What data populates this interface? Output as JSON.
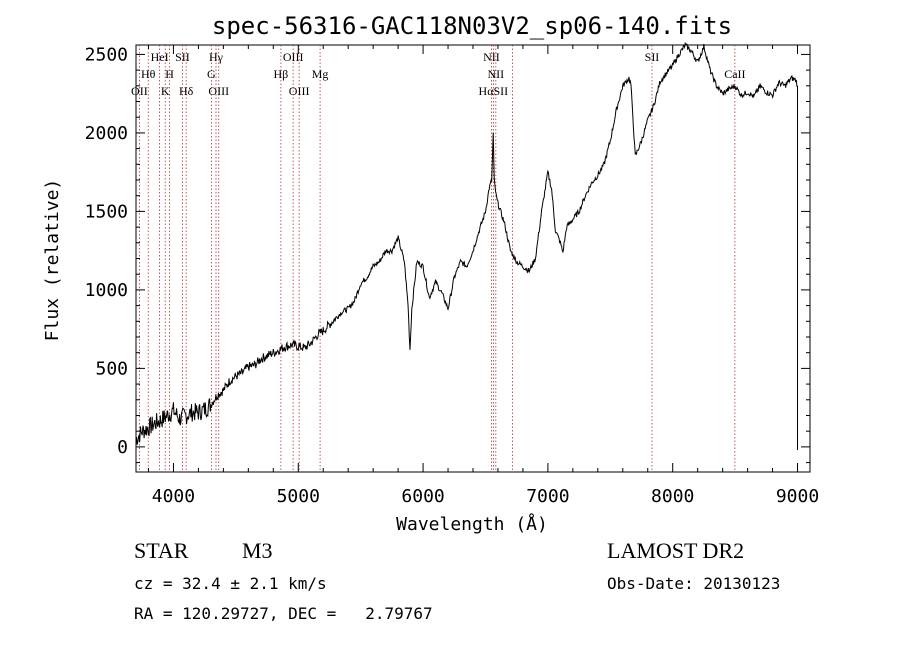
{
  "chart_data": {
    "type": "line",
    "title": "spec-56316-GAC118N03V2_sp06-140.fits",
    "xlabel": "Wavelength (Å)",
    "ylabel": "Flux (relative)",
    "xlim": [
      3700,
      9100
    ],
    "ylim": [
      -160,
      2560
    ],
    "xticks": [
      4000,
      5000,
      6000,
      7000,
      8000,
      9000
    ],
    "yticks": [
      0,
      500,
      1000,
      1500,
      2000,
      2500
    ],
    "grid": false,
    "series": [
      {
        "x": [
          3700,
          3750,
          3800,
          3850,
          3900,
          3950,
          4000,
          4050,
          4100,
          4150,
          4200,
          4250,
          4300,
          4350,
          4400,
          4450,
          4500,
          4550,
          4600,
          4650,
          4700,
          4750,
          4800,
          4850,
          4900,
          4950,
          5000,
          5050,
          5100,
          5150,
          5200,
          5250,
          5300,
          5350,
          5400,
          5450,
          5500,
          5550,
          5600,
          5650,
          5700,
          5750,
          5800,
          5850,
          5880,
          5895,
          5910,
          5950,
          6000,
          6050,
          6100,
          6150,
          6200,
          6250,
          6300,
          6350,
          6400,
          6450,
          6480,
          6500,
          6530,
          6550,
          6562,
          6570,
          6585,
          6600,
          6650,
          6700,
          6750,
          6800,
          6850,
          6900,
          6950,
          7000,
          7030,
          7060,
          7100,
          7120,
          7150,
          7200,
          7250,
          7300,
          7350,
          7400,
          7450,
          7500,
          7550,
          7600,
          7650,
          7665,
          7700,
          7750,
          7800,
          7850,
          7900,
          7950,
          8000,
          8050,
          8100,
          8150,
          8200,
          8250,
          8300,
          8350,
          8400,
          8450,
          8500,
          8550,
          8600,
          8650,
          8700,
          8750,
          8800,
          8850,
          8900,
          8950,
          8980,
          8990,
          9000
        ],
        "y": [
          50,
          100,
          120,
          150,
          170,
          200,
          230,
          180,
          200,
          220,
          220,
          240,
          270,
          330,
          360,
          420,
          450,
          470,
          510,
          520,
          560,
          580,
          600,
          620,
          640,
          650,
          640,
          630,
          660,
          710,
          740,
          780,
          820,
          860,
          880,
          930,
          1040,
          1080,
          1150,
          1180,
          1250,
          1250,
          1330,
          1180,
          900,
          620,
          880,
          1180,
          1150,
          950,
          1050,
          980,
          880,
          1080,
          1180,
          1150,
          1250,
          1380,
          1450,
          1500,
          1650,
          1700,
          2000,
          1700,
          1600,
          1550,
          1430,
          1250,
          1180,
          1150,
          1120,
          1200,
          1500,
          1750,
          1640,
          1380,
          1300,
          1240,
          1400,
          1450,
          1500,
          1600,
          1680,
          1730,
          1800,
          1950,
          2150,
          2300,
          2350,
          2310,
          1850,
          1950,
          2080,
          2180,
          2330,
          2380,
          2430,
          2500,
          2560,
          2520,
          2450,
          2550,
          2400,
          2300,
          2250,
          2280,
          2300,
          2240,
          2260,
          2230,
          2300,
          2260,
          2240,
          2320,
          2300,
          2350,
          2340,
          2330,
          2300
        ]
      }
    ],
    "lines": [
      {
        "x": 3727,
        "labels": [
          "OII"
        ]
      },
      {
        "x": 3798,
        "labels": [
          "Hθ"
        ]
      },
      {
        "x": 3889,
        "labels": [
          "HeI"
        ]
      },
      {
        "x": 3934,
        "labels": [
          "K"
        ]
      },
      {
        "x": 3969,
        "labels": [
          "H"
        ]
      },
      {
        "x": 4072,
        "labels": [
          "SII"
        ]
      },
      {
        "x": 4102,
        "labels": [
          "Hδ"
        ]
      },
      {
        "x": 4304,
        "labels": [
          "G"
        ]
      },
      {
        "x": 4341,
        "labels": [
          "Hγ"
        ]
      },
      {
        "x": 4363,
        "labels": [
          "OIII"
        ]
      },
      {
        "x": 4861,
        "labels": [
          "Hβ"
        ]
      },
      {
        "x": 4959,
        "labels": [
          "OIII"
        ]
      },
      {
        "x": 5007,
        "labels": [
          "OIII"
        ]
      },
      {
        "x": 5175,
        "labels": [
          "Mg"
        ]
      },
      {
        "x": 6548,
        "labels": [
          "NII"
        ]
      },
      {
        "x": 6563,
        "labels": [
          "Hα"
        ]
      },
      {
        "x": 6583,
        "labels": [
          "NII"
        ]
      },
      {
        "x": 6716,
        "labels": [
          "SII"
        ]
      },
      {
        "x": 7834,
        "labels": [
          "SII"
        ]
      },
      {
        "x": 8498,
        "labels": [
          "CaII"
        ]
      }
    ],
    "line_labels": [
      {
        "x": 3727,
        "row": 3,
        "text": "OII"
      },
      {
        "x": 3798,
        "row": 2,
        "text": "Hθ"
      },
      {
        "x": 3889,
        "row": 1,
        "text": "HeI"
      },
      {
        "x": 3934,
        "row": 3,
        "text": "K"
      },
      {
        "x": 3969,
        "row": 2,
        "text": "H"
      },
      {
        "x": 4072,
        "row": 1,
        "text": "SII"
      },
      {
        "x": 4102,
        "row": 3,
        "text": "Hδ"
      },
      {
        "x": 4304,
        "row": 2,
        "text": "G"
      },
      {
        "x": 4341,
        "row": 1,
        "text": "Hγ"
      },
      {
        "x": 4363,
        "row": 3,
        "text": "OIII"
      },
      {
        "x": 4861,
        "row": 2,
        "text": "Hβ"
      },
      {
        "x": 4959,
        "row": 1,
        "text": "OIII"
      },
      {
        "x": 5007,
        "row": 3,
        "text": "OIII"
      },
      {
        "x": 5175,
        "row": 2,
        "text": "Mg"
      },
      {
        "x": 6548,
        "row": 1,
        "text": "NII"
      },
      {
        "x": 6563,
        "row": 3,
        "text": "HαSII"
      },
      {
        "x": 6583,
        "row": 2,
        "text": "NII"
      },
      {
        "x": 7834,
        "row": 1,
        "text": "SII"
      },
      {
        "x": 8498,
        "row": 2,
        "text": "CaII"
      }
    ]
  },
  "info": {
    "object_class": "STAR",
    "subclass": "M3",
    "survey": "LAMOST DR2",
    "redshift": "cz = 32.4 ± 2.1 km/s",
    "obs_date": "Obs-Date: 20130123",
    "coords": "RA = 120.29727, DEC =   2.79767"
  }
}
